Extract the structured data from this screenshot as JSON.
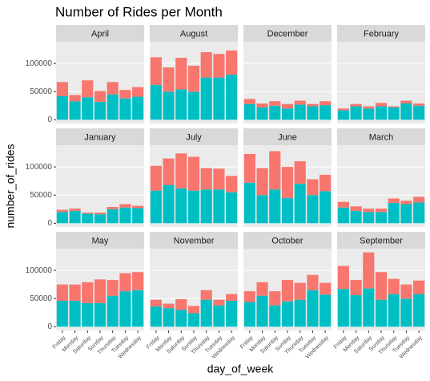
{
  "chart_data": {
    "type": "bar",
    "stacked": true,
    "title": "Number of Rides per Month",
    "x_label": "day_of_week",
    "y_label": "number_of_rides",
    "categories": [
      "Friday",
      "Monday",
      "Saturday",
      "Sunday",
      "Thursday",
      "Tuesday",
      "Wednesday"
    ],
    "ylim": [
      -6600,
      138600
    ],
    "yticks": [
      0,
      50000,
      100000
    ],
    "grid": true,
    "panels": [
      {
        "title": "April",
        "series": [
          {
            "color": "#00BFC4",
            "values": [
              42000,
              33000,
              40000,
              32000,
              45000,
              38000,
              41000
            ]
          },
          {
            "color": "#F8766D",
            "values": [
              25000,
              11000,
              30000,
              19000,
              22000,
              15000,
              17000
            ]
          }
        ]
      },
      {
        "title": "August",
        "series": [
          {
            "color": "#00BFC4",
            "values": [
              62000,
              50000,
              54000,
              50000,
              75000,
              75000,
              80000
            ]
          },
          {
            "color": "#F8766D",
            "values": [
              49000,
              43000,
              56000,
              46000,
              45000,
              42000,
              43000
            ]
          }
        ]
      },
      {
        "title": "December",
        "series": [
          {
            "color": "#00BFC4",
            "values": [
              28000,
              22000,
              25000,
              20000,
              27000,
              24000,
              26000
            ]
          },
          {
            "color": "#F8766D",
            "values": [
              9000,
              7000,
              8000,
              8000,
              7000,
              4000,
              7000
            ]
          }
        ]
      },
      {
        "title": "February",
        "series": [
          {
            "color": "#00BFC4",
            "values": [
              17000,
              24000,
              20000,
              24000,
              22000,
              29000,
              25000
            ]
          },
          {
            "color": "#F8766D",
            "values": [
              3000,
              4000,
              4000,
              6000,
              2000,
              5000,
              4000
            ]
          }
        ]
      },
      {
        "title": "January",
        "series": [
          {
            "color": "#00BFC4",
            "values": [
              20000,
              22000,
              17000,
              16000,
              25000,
              28000,
              27000
            ]
          },
          {
            "color": "#F8766D",
            "values": [
              4000,
              4000,
              2000,
              3000,
              4000,
              6000,
              4000
            ]
          }
        ]
      },
      {
        "title": "July",
        "series": [
          {
            "color": "#00BFC4",
            "values": [
              58000,
              68000,
              62000,
              58000,
              60000,
              60000,
              55000
            ]
          },
          {
            "color": "#F8766D",
            "values": [
              44000,
              47000,
              62000,
              60000,
              38000,
              37000,
              29000
            ]
          }
        ]
      },
      {
        "title": "June",
        "series": [
          {
            "color": "#00BFC4",
            "values": [
              72000,
              50000,
              60000,
              45000,
              70000,
              50000,
              57000
            ]
          },
          {
            "color": "#F8766D",
            "values": [
              51000,
              48000,
              68000,
              55000,
              40000,
              28000,
              29000
            ]
          }
        ]
      },
      {
        "title": "March",
        "series": [
          {
            "color": "#00BFC4",
            "values": [
              28000,
              22000,
              20000,
              20000,
              36000,
              34000,
              37000
            ]
          },
          {
            "color": "#F8766D",
            "values": [
              10000,
              8000,
              6000,
              6000,
              8000,
              6000,
              10000
            ]
          }
        ]
      },
      {
        "title": "May",
        "series": [
          {
            "color": "#00BFC4",
            "values": [
              46000,
              46000,
              42000,
              42000,
              55000,
              63000,
              65000
            ]
          },
          {
            "color": "#F8766D",
            "values": [
              29000,
              29000,
              37000,
              42000,
              28000,
              32000,
              32000
            ]
          }
        ]
      },
      {
        "title": "November",
        "series": [
          {
            "color": "#00BFC4",
            "values": [
              36000,
              33000,
              30000,
              24000,
              48000,
              38000,
              46000
            ]
          },
          {
            "color": "#F8766D",
            "values": [
              12000,
              8000,
              19000,
              13000,
              17000,
              10000,
              12000
            ]
          }
        ]
      },
      {
        "title": "October",
        "series": [
          {
            "color": "#00BFC4",
            "values": [
              44000,
              55000,
              38000,
              45000,
              48000,
              65000,
              57000
            ]
          },
          {
            "color": "#F8766D",
            "values": [
              19000,
              24000,
              25000,
              38000,
              30000,
              27000,
              21000
            ]
          }
        ]
      },
      {
        "title": "September",
        "series": [
          {
            "color": "#00BFC4",
            "values": [
              67000,
              56000,
              68000,
              48000,
              58000,
              50000,
              58000
            ]
          },
          {
            "color": "#F8766D",
            "values": [
              41000,
              27000,
              64000,
              49000,
              27000,
              25000,
              24000
            ]
          }
        ]
      }
    ]
  }
}
